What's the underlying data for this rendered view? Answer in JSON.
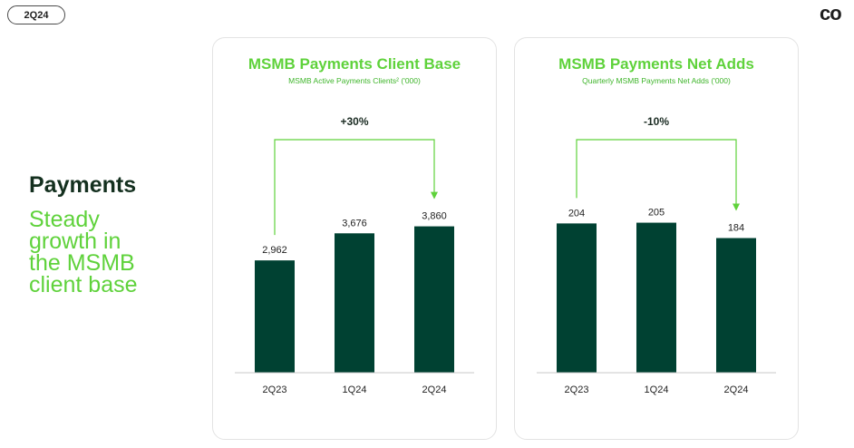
{
  "header": {
    "period": "2Q24",
    "brand": "co"
  },
  "side": {
    "title": "Payments",
    "subtitle_lines": [
      "Steady",
      "growth in",
      "the MSMB",
      "client base"
    ]
  },
  "colors": {
    "bar": "#004132",
    "accent": "#5fd23b",
    "axis": "#c8c8c8"
  },
  "chart_data": [
    {
      "type": "bar",
      "title": "MSMB Payments Client Base",
      "subtitle": "MSMB Active Payments Clients² ('000)",
      "categories": [
        "2Q23",
        "1Q24",
        "2Q24"
      ],
      "values": [
        2962,
        3676,
        3860
      ],
      "value_labels": [
        "2,962",
        "3,676",
        "3,860"
      ],
      "ylim": [
        0,
        4400
      ],
      "grid": false,
      "growth_annotation": {
        "label": "+30%",
        "from": "2Q23",
        "to": "2Q24"
      }
    },
    {
      "type": "bar",
      "title": "MSMB Payments Net Adds",
      "subtitle": "Quarterly MSMB Payments Net Adds ('000)",
      "categories": [
        "2Q23",
        "1Q24",
        "2Q24"
      ],
      "values": [
        204,
        205,
        184
      ],
      "value_labels": [
        "204",
        "205",
        "184"
      ],
      "ylim": [
        0,
        228
      ],
      "grid": false,
      "growth_annotation": {
        "label": "-10%",
        "from": "2Q23",
        "to": "2Q24"
      }
    }
  ]
}
